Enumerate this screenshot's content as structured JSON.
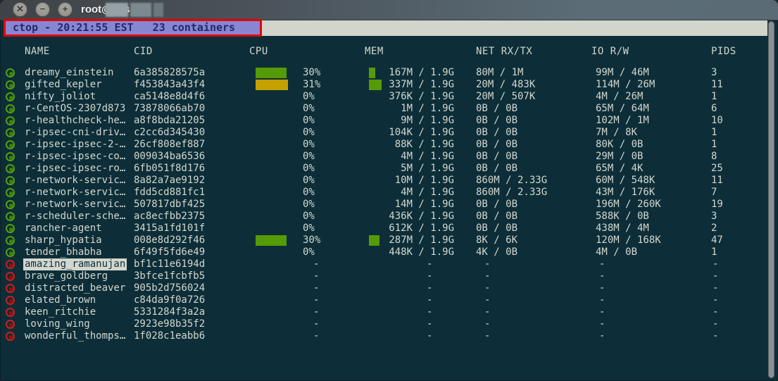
{
  "window": {
    "title": "root@vps",
    "buttons": {
      "close": "✕",
      "minimize": "−",
      "maximize": "+"
    }
  },
  "header": {
    "text": "ctop - 20:21:55 EST   23 containers"
  },
  "columns": [
    "NAME",
    "CID",
    "CPU",
    "MEM",
    "NET RX/TX",
    "IO R/W",
    "PIDS"
  ],
  "colors": {
    "background": "#0d2e38",
    "text": "#d3d7cf",
    "header_bg": "#8886d2",
    "header_text": "#23276b",
    "annotation_border": "#e60000",
    "bar_green": "#559b07",
    "bar_orange": "#c4a000",
    "status_running": "#55a00a",
    "status_stopped": "#cf1d1d",
    "selected_bg": "#d3d7cf"
  },
  "rows": [
    {
      "name": "dreamy_einstein",
      "cid": "6a385828575a",
      "status": "running",
      "selected": false,
      "cpu": "30%",
      "cpu_pct": 30,
      "cpu_color": "green",
      "mem": "167M / 1.9G",
      "mem_pct": 8.6,
      "net": "80M / 1M",
      "io": "99M / 46M",
      "pids": "3"
    },
    {
      "name": "gifted_kepler",
      "cid": "f453843a43f4",
      "status": "running",
      "selected": false,
      "cpu": "31%",
      "cpu_pct": 31,
      "cpu_color": "orange",
      "mem": "337M / 1.9G",
      "mem_pct": 17.3,
      "net": "20M / 483K",
      "io": "114M / 26M",
      "pids": "11"
    },
    {
      "name": "nifty_joliot",
      "cid": "ca5148e8d4f6",
      "status": "running",
      "selected": false,
      "cpu": "0%",
      "cpu_pct": 0,
      "cpu_color": "green",
      "mem": "376K / 1.9G",
      "mem_pct": 0,
      "net": "20M / 507K",
      "io": "4M / 26M",
      "pids": "1"
    },
    {
      "name": "r-CentOS-2307d873",
      "cid": "73878066ab70",
      "status": "running",
      "selected": false,
      "cpu": "0%",
      "cpu_pct": 0,
      "cpu_color": "green",
      "mem": "1M / 1.9G",
      "mem_pct": 0,
      "net": "0B / 0B",
      "io": "65M / 64M",
      "pids": "6"
    },
    {
      "name": "r-healthcheck-he…",
      "cid": "a8f8bda21205",
      "status": "running",
      "selected": false,
      "cpu": "0%",
      "cpu_pct": 0,
      "cpu_color": "green",
      "mem": "9M / 1.9G",
      "mem_pct": 0,
      "net": "0B / 0B",
      "io": "102M / 1M",
      "pids": "10"
    },
    {
      "name": "r-ipsec-cni-driv…",
      "cid": "c2cc6d345430",
      "status": "running",
      "selected": false,
      "cpu": "0%",
      "cpu_pct": 0,
      "cpu_color": "green",
      "mem": "104K / 1.9G",
      "mem_pct": 0,
      "net": "0B / 0B",
      "io": "7M / 8K",
      "pids": "1"
    },
    {
      "name": "r-ipsec-ipsec-2-…",
      "cid": "26cf808ef887",
      "status": "running",
      "selected": false,
      "cpu": "0%",
      "cpu_pct": 0,
      "cpu_color": "green",
      "mem": "88K / 1.9G",
      "mem_pct": 0,
      "net": "0B / 0B",
      "io": "80K / 0B",
      "pids": "1"
    },
    {
      "name": "r-ipsec-ipsec-co…",
      "cid": "009034ba6536",
      "status": "running",
      "selected": false,
      "cpu": "0%",
      "cpu_pct": 0,
      "cpu_color": "green",
      "mem": "4M / 1.9G",
      "mem_pct": 0,
      "net": "0B / 0B",
      "io": "29M / 0B",
      "pids": "8"
    },
    {
      "name": "r-ipsec-ipsec-ro…",
      "cid": "6fb051f8d176",
      "status": "running",
      "selected": false,
      "cpu": "0%",
      "cpu_pct": 0,
      "cpu_color": "green",
      "mem": "5M / 1.9G",
      "mem_pct": 0,
      "net": "0B / 0B",
      "io": "65M / 4K",
      "pids": "25"
    },
    {
      "name": "r-network-servic…",
      "cid": "8a82a7ae9192",
      "status": "running",
      "selected": false,
      "cpu": "0%",
      "cpu_pct": 0,
      "cpu_color": "green",
      "mem": "10M / 1.9G",
      "mem_pct": 0,
      "net": "860M / 2.33G",
      "io": "60M / 548K",
      "pids": "11"
    },
    {
      "name": "r-network-servic…",
      "cid": "fdd5cd881fc1",
      "status": "running",
      "selected": false,
      "cpu": "0%",
      "cpu_pct": 0,
      "cpu_color": "green",
      "mem": "4M / 1.9G",
      "mem_pct": 0,
      "net": "860M / 2.33G",
      "io": "43M / 176K",
      "pids": "7"
    },
    {
      "name": "r-network-servic…",
      "cid": "507817dbf425",
      "status": "running",
      "selected": false,
      "cpu": "0%",
      "cpu_pct": 0,
      "cpu_color": "green",
      "mem": "14M / 1.9G",
      "mem_pct": 0,
      "net": "0B / 0B",
      "io": "196M / 260K",
      "pids": "19"
    },
    {
      "name": "r-scheduler-sche…",
      "cid": "ac8ecfbb2375",
      "status": "running",
      "selected": false,
      "cpu": "0%",
      "cpu_pct": 0,
      "cpu_color": "green",
      "mem": "436K / 1.9G",
      "mem_pct": 0,
      "net": "0B / 0B",
      "io": "588K / 0B",
      "pids": "3"
    },
    {
      "name": "rancher-agent",
      "cid": "3415a1fd101f",
      "status": "running",
      "selected": false,
      "cpu": "0%",
      "cpu_pct": 0,
      "cpu_color": "green",
      "mem": "612K / 1.9G",
      "mem_pct": 0,
      "net": "0B / 0B",
      "io": "438M / 4M",
      "pids": "2"
    },
    {
      "name": "sharp_hypatia",
      "cid": "008e8d292f46",
      "status": "running",
      "selected": false,
      "cpu": "30%",
      "cpu_pct": 30,
      "cpu_color": "green",
      "mem": "287M / 1.9G",
      "mem_pct": 14.8,
      "net": "8K / 6K",
      "io": "120M / 168K",
      "pids": "47"
    },
    {
      "name": "tender_bhabha",
      "cid": "6f49f5fd6e49",
      "status": "running",
      "selected": false,
      "cpu": "0%",
      "cpu_pct": 0,
      "cpu_color": "green",
      "mem": "448K / 1.9G",
      "mem_pct": 0,
      "net": "4K / 0B",
      "io": "4M / 0B",
      "pids": "1"
    },
    {
      "name": "amazing_ramanujan",
      "cid": "bf1c11e6194d",
      "status": "stopped",
      "selected": true,
      "cpu": "-",
      "cpu_pct": 0,
      "cpu_color": "green",
      "mem": "-",
      "mem_pct": 0,
      "net": "-",
      "io": "-",
      "pids": "-"
    },
    {
      "name": "brave_goldberg",
      "cid": "3bfce1fcbfb5",
      "status": "stopped",
      "selected": false,
      "cpu": "-",
      "cpu_pct": 0,
      "cpu_color": "green",
      "mem": "-",
      "mem_pct": 0,
      "net": "-",
      "io": "-",
      "pids": "-"
    },
    {
      "name": "distracted_beaver",
      "cid": "905b2d756024",
      "status": "stopped",
      "selected": false,
      "cpu": "-",
      "cpu_pct": 0,
      "cpu_color": "green",
      "mem": "-",
      "mem_pct": 0,
      "net": "-",
      "io": "-",
      "pids": "-"
    },
    {
      "name": "elated_brown",
      "cid": "c84da9f0a726",
      "status": "stopped",
      "selected": false,
      "cpu": "-",
      "cpu_pct": 0,
      "cpu_color": "green",
      "mem": "-",
      "mem_pct": 0,
      "net": "-",
      "io": "-",
      "pids": "-"
    },
    {
      "name": "keen_ritchie",
      "cid": "5331284f3a2a",
      "status": "stopped",
      "selected": false,
      "cpu": "-",
      "cpu_pct": 0,
      "cpu_color": "green",
      "mem": "-",
      "mem_pct": 0,
      "net": "-",
      "io": "-",
      "pids": "-"
    },
    {
      "name": "loving_wing",
      "cid": "2923e98b35f2",
      "status": "stopped",
      "selected": false,
      "cpu": "-",
      "cpu_pct": 0,
      "cpu_color": "green",
      "mem": "-",
      "mem_pct": 0,
      "net": "-",
      "io": "-",
      "pids": "-"
    },
    {
      "name": "wonderful_thomps…",
      "cid": "1f028c1eabb6",
      "status": "stopped",
      "selected": false,
      "cpu": "-",
      "cpu_pct": 0,
      "cpu_color": "green",
      "mem": "-",
      "mem_pct": 0,
      "net": "-",
      "io": "-",
      "pids": "-"
    }
  ]
}
